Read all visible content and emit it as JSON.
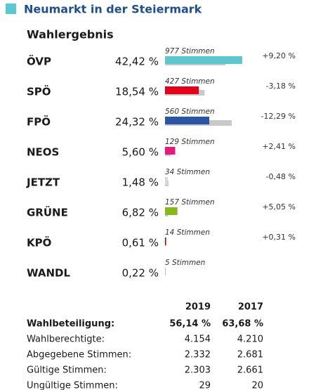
{
  "chart_data": {
    "type": "bar",
    "title": "Neumarkt in der Steiermark",
    "subtitle": "Wahlergebnis",
    "categories": [
      "ÖVP",
      "SPÖ",
      "FPÖ",
      "NEOS",
      "JETZT",
      "GRÜNE",
      "KPÖ",
      "WANDL"
    ],
    "values": [
      42.42,
      18.54,
      24.32,
      5.6,
      1.48,
      6.82,
      0.61,
      0.22
    ],
    "value_labels": [
      "42,42 %",
      "18,54 %",
      "24,32 %",
      "5,60 %",
      "1,48 %",
      "6,82 %",
      "0,61 %",
      "0,22 %"
    ],
    "colors": [
      "#5bc8d0",
      "#e3001b",
      "#2a55a3",
      "#e6197d",
      "#d8d8d8",
      "#86b817",
      "#c00000",
      "#888888"
    ],
    "previous_values": [
      33.22,
      21.72,
      36.61,
      3.19,
      1.96,
      1.77,
      0.3,
      null
    ],
    "previous_color": "#c8c8c8",
    "vote_labels": [
      "977 Stimmen",
      "427 Stimmen",
      "560 Stimmen",
      "129 Stimmen",
      "34 Stimmen",
      "157 Stimmen",
      "14 Stimmen",
      "5 Stimmen"
    ],
    "change_labels": [
      "+9,20 %",
      "-3,18 %",
      "-12,29 %",
      "+2,41 %",
      "-0,48 %",
      "+5,05 %",
      "+0,31 %",
      null
    ]
  },
  "table": {
    "columns": [
      "2019",
      "2017"
    ],
    "rows": [
      [
        "Wahlbeteiligung:",
        "56,14 %",
        "63,68 %"
      ],
      [
        "Wahlberechtigte:",
        "4.154",
        "4.210"
      ],
      [
        "Abgegebene Stimmen:",
        "2.332",
        "2.681"
      ],
      [
        "Gültige Stimmen:",
        "2.303",
        "2.661"
      ],
      [
        "Ungültige Stimmen:",
        "29",
        "20"
      ]
    ]
  }
}
